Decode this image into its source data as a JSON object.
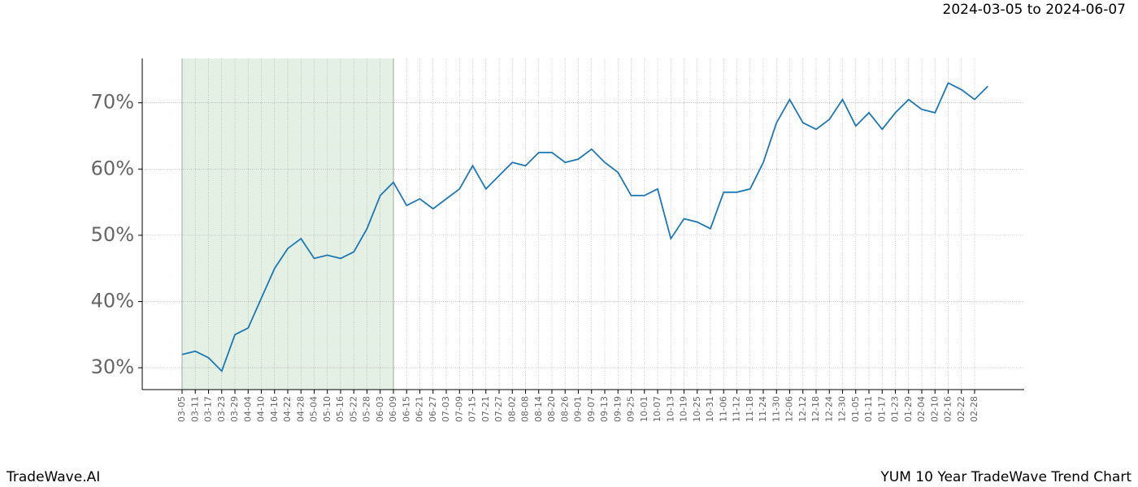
{
  "chart_data": {
    "type": "line",
    "subtitle": "2024-03-05 to 2024-06-07",
    "footer_left": "TradeWave.AI",
    "footer_right": "YUM 10 Year TradeWave Trend Chart",
    "categories": [
      "03-05",
      "03-11",
      "03-17",
      "03-23",
      "03-29",
      "04-04",
      "04-10",
      "04-16",
      "04-22",
      "04-28",
      "05-04",
      "05-10",
      "05-16",
      "05-22",
      "05-28",
      "06-03",
      "06-09",
      "06-15",
      "06-21",
      "06-27",
      "07-03",
      "07-09",
      "07-15",
      "07-21",
      "07-27",
      "08-02",
      "08-08",
      "08-14",
      "08-20",
      "08-26",
      "09-01",
      "09-07",
      "09-13",
      "09-19",
      "09-25",
      "10-01",
      "10-07",
      "10-13",
      "10-19",
      "10-25",
      "10-31",
      "11-06",
      "11-12",
      "11-18",
      "11-24",
      "11-30",
      "12-06",
      "12-12",
      "12-18",
      "12-24",
      "12-30",
      "01-05",
      "01-11",
      "01-17",
      "01-23",
      "01-29",
      "02-04",
      "02-10",
      "02-16",
      "02-22",
      "02-28",
      null
    ],
    "values": [
      32,
      32.5,
      31.5,
      29.5,
      35,
      36,
      40.5,
      45,
      48,
      49.5,
      46.5,
      47,
      46.5,
      47.5,
      51,
      56,
      58,
      54.5,
      55.5,
      54,
      55.5,
      57,
      60.5,
      57,
      59,
      61,
      60.5,
      62.5,
      62.5,
      61,
      61.5,
      63,
      61,
      59.5,
      56,
      56,
      57,
      49.5,
      52.5,
      52,
      51,
      56.5,
      56.5,
      57,
      61,
      67,
      70.5,
      67,
      66,
      67.5,
      70.5,
      66.5,
      68.5,
      66,
      68.5,
      70.5,
      69,
      68.5,
      73,
      72,
      70.5,
      72.5
    ],
    "color": "#1f77b4",
    "shade": [
      0,
      16
    ],
    "shade_color": "#e4f0e4",
    "ylim": [
      26.7,
      76.7
    ],
    "yticks": [
      {
        "value": 30,
        "label": "30%"
      },
      {
        "value": 40,
        "label": "40%"
      },
      {
        "value": 50,
        "label": "50%"
      },
      {
        "value": 60,
        "label": "60%"
      },
      {
        "value": 70,
        "label": "70%"
      }
    ],
    "grid": true
  }
}
